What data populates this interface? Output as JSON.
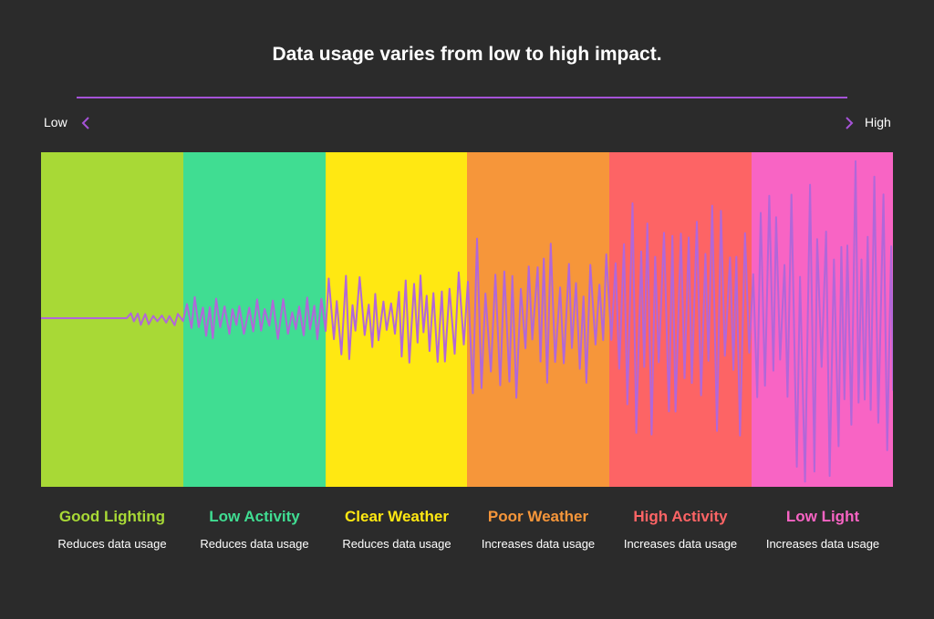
{
  "title": "Data usage varies from low to high impact.",
  "scale": {
    "low_label": "Low",
    "high_label": "High"
  },
  "colors": {
    "background": "#2b2b2b",
    "accent": "#a653d8",
    "wave": "#b167d9"
  },
  "icons": {
    "left": "chevron-left-icon",
    "right": "chevron-right-icon"
  },
  "categories": [
    {
      "name": "Good Lighting",
      "description": "Reduces data usage",
      "band_color": "#a8d936",
      "label_color": "#a8d936",
      "impact": 0
    },
    {
      "name": "Low Activity",
      "description": "Reduces data usage",
      "band_color": "#40dd92",
      "label_color": "#40dd92",
      "impact": 1
    },
    {
      "name": "Clear Weather",
      "description": "Reduces data usage",
      "band_color": "#ffe812",
      "label_color": "#ffe812",
      "impact": 2
    },
    {
      "name": "Poor Weather",
      "description": "Increases data usage",
      "band_color": "#f6963a",
      "label_color": "#f6963a",
      "impact": 3
    },
    {
      "name": "High Activity",
      "description": "Increases data usage",
      "band_color": "#fd6465",
      "label_color": "#fd6465",
      "impact": 4
    },
    {
      "name": "Low Light",
      "description": "Increases data usage",
      "band_color": "#f864c4",
      "label_color": "#f864c4",
      "impact": 5
    }
  ]
}
